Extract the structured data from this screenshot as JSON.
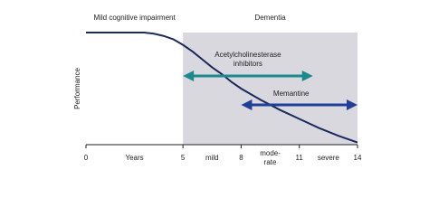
{
  "chart_data": {
    "type": "line",
    "y_label": "Performance",
    "regions": [
      {
        "label": "Mild cognitive impairment",
        "x_range": [
          0,
          5
        ],
        "shaded": false
      },
      {
        "label": "Dementia",
        "x_range": [
          5,
          14
        ],
        "shaded": true,
        "color": "#d9d8de"
      }
    ],
    "x": [
      0,
      2,
      3,
      3.5,
      4,
      4.5,
      5,
      5.5,
      6,
      6.5,
      7,
      7.5,
      8,
      9,
      10,
      11,
      12,
      13,
      14
    ],
    "values": [
      100,
      100,
      100,
      99,
      97,
      94,
      89,
      83,
      76,
      69,
      63,
      56,
      50,
      40,
      31,
      23,
      15,
      8,
      2
    ],
    "color": "#1b2a5c",
    "xlim": [
      0,
      14
    ],
    "xticks": [
      0,
      5,
      8,
      11,
      14
    ],
    "interval_labels": [
      "Years",
      "mild",
      "mode-\nrate",
      "severe"
    ],
    "ylim": [
      0,
      100
    ],
    "annotations": [
      {
        "label": "Acetylcholinesterase\ninhibitors",
        "x_range": [
          5,
          11.7
        ],
        "color": "#1a8a8f"
      },
      {
        "label": "Memantine",
        "x_range": [
          8,
          14
        ],
        "color": "#1f3f99"
      }
    ]
  }
}
